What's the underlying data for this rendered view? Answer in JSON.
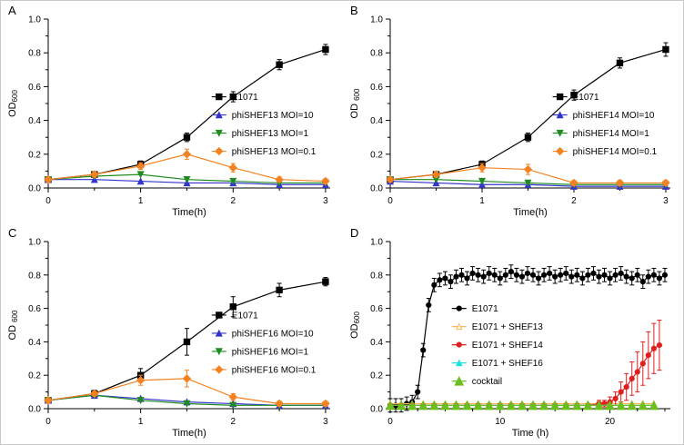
{
  "figure": {
    "background": "#ffffff",
    "border_color": "#c9c9c9"
  },
  "chart_data": [
    {
      "panel_label": "A",
      "type": "line",
      "title": "",
      "xlabel": "Time(h)",
      "ylabel": "OD",
      "ylabel_sub": "600",
      "ylabel_space": false,
      "xlim": [
        0,
        3.05
      ],
      "ylim": [
        0,
        1.0
      ],
      "xticks": [
        0,
        1,
        2,
        3
      ],
      "yticks": [
        0,
        0.2,
        0.4,
        0.6,
        0.8,
        1.0
      ],
      "xminor": 0.5,
      "yminor": 0.1,
      "legend": {
        "fx": 0.58,
        "fy": 0.46,
        "dy": 20
      },
      "x": [
        0,
        0.5,
        1,
        1.5,
        2,
        2.5,
        3
      ],
      "series": [
        {
          "name": "E1071",
          "color": "#000000",
          "marker": "square",
          "msize": 3.2,
          "values": [
            0.05,
            0.08,
            0.14,
            0.3,
            0.54,
            0.73,
            0.82
          ],
          "errors": [
            0.015,
            0.015,
            0.02,
            0.025,
            0.03,
            0.03,
            0.03
          ]
        },
        {
          "name": "phiSHEF13 MOI=10",
          "color": "#3333cc",
          "marker": "triangle",
          "msize": 3.2,
          "values": [
            0.05,
            0.05,
            0.04,
            0.03,
            0.03,
            0.02,
            0.02
          ]
        },
        {
          "name": "phiSHEF13 MOI=1",
          "color": "#1f8c1f",
          "marker": "triangle-down",
          "msize": 3.2,
          "values": [
            0.05,
            0.07,
            0.08,
            0.05,
            0.04,
            0.03,
            0.03
          ]
        },
        {
          "name": "phiSHEF13 MOI=0.1",
          "color": "#f58220",
          "marker": "diamond",
          "msize": 3,
          "values": [
            0.05,
            0.08,
            0.13,
            0.2,
            0.12,
            0.05,
            0.04
          ],
          "errors": [
            0.015,
            0.015,
            0.02,
            0.03,
            0.025,
            0.015,
            0.015
          ]
        }
      ]
    },
    {
      "panel_label": "B",
      "type": "line",
      "title": "",
      "xlabel": "Time(h)",
      "ylabel": "OD",
      "ylabel_sub": "600",
      "ylabel_space": true,
      "xlim": [
        0,
        3.05
      ],
      "ylim": [
        0,
        1.0
      ],
      "xticks": [
        0,
        1,
        2,
        3
      ],
      "yticks": [
        0,
        0.2,
        0.4,
        0.6,
        0.8,
        1.0
      ],
      "xminor": 0.5,
      "yminor": 0.1,
      "legend": {
        "fx": 0.58,
        "fy": 0.46,
        "dy": 20
      },
      "x": [
        0,
        0.5,
        1,
        1.5,
        2,
        2.5,
        3
      ],
      "series": [
        {
          "name": "E1071",
          "color": "#000000",
          "marker": "square",
          "msize": 3.2,
          "values": [
            0.05,
            0.08,
            0.14,
            0.3,
            0.55,
            0.74,
            0.82
          ],
          "errors": [
            0.015,
            0.015,
            0.02,
            0.025,
            0.03,
            0.03,
            0.04
          ]
        },
        {
          "name": "phiSHEF14 MOI=10",
          "color": "#3333cc",
          "marker": "triangle",
          "msize": 3.2,
          "values": [
            0.04,
            0.03,
            0.02,
            0.02,
            0.01,
            0.01,
            0.01
          ]
        },
        {
          "name": "phiSHEF14 MOI=1",
          "color": "#1f8c1f",
          "marker": "triangle-down",
          "msize": 3.2,
          "values": [
            0.05,
            0.05,
            0.04,
            0.03,
            0.02,
            0.02,
            0.02
          ]
        },
        {
          "name": "phiSHEF14 MOI=0.1",
          "color": "#f58220",
          "marker": "diamond",
          "msize": 3,
          "values": [
            0.05,
            0.08,
            0.12,
            0.11,
            0.03,
            0.03,
            0.03
          ],
          "errors": [
            0.015,
            0.015,
            0.025,
            0.03,
            0.015,
            0.015,
            0.015
          ]
        }
      ]
    },
    {
      "panel_label": "C",
      "type": "line",
      "title": "",
      "xlabel": "Time(h)",
      "ylabel": "OD",
      "ylabel_sub": "600",
      "ylabel_space": true,
      "xlim": [
        0,
        3.05
      ],
      "ylim": [
        0,
        1.0
      ],
      "xticks": [
        0,
        1,
        2,
        3
      ],
      "yticks": [
        0,
        0.2,
        0.4,
        0.6,
        0.8,
        1.0
      ],
      "xminor": 0.5,
      "yminor": 0.1,
      "legend": {
        "fx": 0.58,
        "fy": 0.44,
        "dy": 20
      },
      "x": [
        0,
        0.5,
        1,
        1.5,
        2,
        2.5,
        3
      ],
      "series": [
        {
          "name": "E1071",
          "color": "#000000",
          "marker": "square",
          "msize": 3.2,
          "values": [
            0.05,
            0.09,
            0.2,
            0.4,
            0.61,
            0.71,
            0.76
          ],
          "errors": [
            0.015,
            0.02,
            0.04,
            0.08,
            0.06,
            0.04,
            0.025
          ]
        },
        {
          "name": "phiSHEF16 MOI=10",
          "color": "#3333cc",
          "marker": "triangle",
          "msize": 3.2,
          "values": [
            0.05,
            0.08,
            0.06,
            0.04,
            0.03,
            0.02,
            0.02
          ]
        },
        {
          "name": "phiSHEF16 MOI=1",
          "color": "#1f8c1f",
          "marker": "triangle-down",
          "msize": 3.2,
          "values": [
            0.05,
            0.08,
            0.05,
            0.03,
            0.02,
            0.02,
            0.02
          ]
        },
        {
          "name": "phiSHEF16 MOI=0.1",
          "color": "#f58220",
          "marker": "diamond",
          "msize": 3,
          "values": [
            0.05,
            0.09,
            0.17,
            0.18,
            0.07,
            0.03,
            0.03
          ],
          "errors": [
            0.015,
            0.015,
            0.03,
            0.05,
            0.02,
            0.015,
            0.015
          ]
        }
      ]
    },
    {
      "panel_label": "D",
      "type": "line",
      "title": "",
      "xlabel": "Time (h)",
      "ylabel": "OD",
      "ylabel_sub": "600",
      "ylabel_space": false,
      "xlim": [
        0,
        25.5
      ],
      "ylim": [
        0,
        1.0
      ],
      "xticks": [
        0,
        10,
        20
      ],
      "yticks": [
        0,
        0.2,
        0.4,
        0.6,
        0.8,
        1.0
      ],
      "xminor": 2.5,
      "yminor": 0.1,
      "legend": {
        "fx": 0.22,
        "fy": 0.4,
        "dy": 20
      },
      "series": [
        {
          "name": "E1071",
          "color": "#000000",
          "marker": "circle",
          "msize": 2.6,
          "x": [
            0,
            0.5,
            1,
            1.5,
            2,
            2.5,
            3,
            3.5,
            4,
            4.5,
            5,
            5.5,
            6,
            6.5,
            7,
            7.5,
            8,
            8.5,
            9,
            9.5,
            10,
            10.5,
            11,
            11.5,
            12,
            12.5,
            13,
            13.5,
            14,
            14.5,
            15,
            15.5,
            16,
            16.5,
            17,
            17.5,
            18,
            18.5,
            19,
            19.5,
            20,
            20.5,
            21,
            21.5,
            22,
            22.5,
            23,
            23.5,
            24,
            24.5,
            25
          ],
          "values": [
            0.02,
            0.02,
            0.02,
            0.03,
            0.04,
            0.1,
            0.35,
            0.62,
            0.74,
            0.77,
            0.78,
            0.76,
            0.79,
            0.8,
            0.78,
            0.81,
            0.8,
            0.79,
            0.81,
            0.8,
            0.78,
            0.8,
            0.82,
            0.8,
            0.79,
            0.81,
            0.8,
            0.78,
            0.8,
            0.81,
            0.79,
            0.8,
            0.81,
            0.79,
            0.8,
            0.78,
            0.8,
            0.81,
            0.79,
            0.8,
            0.78,
            0.8,
            0.81,
            0.79,
            0.78,
            0.8,
            0.76,
            0.79,
            0.8,
            0.78,
            0.8
          ],
          "errors": 0.04
        },
        {
          "name": "E1071 + SHEF13",
          "color": "#ffb558",
          "marker": "triangle",
          "open": true,
          "msize": 3,
          "x": [
            0,
            1,
            2,
            3,
            4,
            5,
            6,
            7,
            8,
            9,
            10,
            11,
            12,
            13,
            14,
            15,
            16,
            17,
            18,
            19,
            20,
            21,
            22,
            23,
            24
          ],
          "values": [
            0.03,
            0.03,
            0.03,
            0.03,
            0.03,
            0.03,
            0.03,
            0.03,
            0.03,
            0.03,
            0.03,
            0.03,
            0.03,
            0.03,
            0.03,
            0.03,
            0.03,
            0.03,
            0.03,
            0.03,
            0.03,
            0.03,
            0.03,
            0.03,
            0.03
          ]
        },
        {
          "name": "E1071 + SHEF14",
          "color": "#e01f1f",
          "marker": "circle",
          "msize": 2.6,
          "x": [
            0,
            1,
            2,
            3,
            4,
            5,
            6,
            7,
            8,
            9,
            10,
            11,
            12,
            13,
            14,
            15,
            16,
            17,
            18,
            19,
            19.5,
            20,
            20.5,
            21,
            21.5,
            22,
            22.5,
            23,
            23.5,
            24,
            24.5
          ],
          "values": [
            0.02,
            0.02,
            0.02,
            0.02,
            0.02,
            0.02,
            0.02,
            0.02,
            0.02,
            0.02,
            0.02,
            0.02,
            0.02,
            0.02,
            0.02,
            0.02,
            0.02,
            0.02,
            0.02,
            0.03,
            0.03,
            0.04,
            0.06,
            0.1,
            0.13,
            0.18,
            0.22,
            0.27,
            0.32,
            0.36,
            0.38
          ],
          "errors": [
            0.01,
            0.01,
            0.01,
            0.01,
            0.01,
            0.01,
            0.01,
            0.01,
            0.01,
            0.01,
            0.01,
            0.01,
            0.01,
            0.01,
            0.01,
            0.01,
            0.01,
            0.01,
            0.01,
            0.02,
            0.02,
            0.03,
            0.04,
            0.06,
            0.08,
            0.1,
            0.12,
            0.13,
            0.14,
            0.15,
            0.15
          ]
        },
        {
          "name": "E1071 + SHEF16",
          "color": "#19e0e0",
          "marker": "triangle",
          "msize": 3,
          "x": [
            0,
            1,
            2,
            3,
            4,
            5,
            6,
            7,
            8,
            9,
            10,
            11,
            12,
            13,
            14,
            15,
            16,
            17,
            18,
            19,
            20,
            21,
            22,
            23,
            24
          ],
          "values": [
            0.02,
            0.02,
            0.02,
            0.02,
            0.02,
            0.02,
            0.02,
            0.02,
            0.02,
            0.02,
            0.02,
            0.02,
            0.02,
            0.02,
            0.02,
            0.02,
            0.02,
            0.02,
            0.02,
            0.02,
            0.02,
            0.02,
            0.02,
            0.02,
            0.02
          ]
        },
        {
          "name": "cocktail",
          "color": "#6abf1e",
          "marker": "triangle",
          "msize": 4.5,
          "x": [
            0,
            1,
            2,
            3,
            4,
            5,
            6,
            7,
            8,
            9,
            10,
            11,
            12,
            13,
            14,
            15,
            16,
            17,
            18,
            19,
            20,
            21,
            22,
            23,
            24
          ],
          "values": [
            0.02,
            0.02,
            0.02,
            0.02,
            0.02,
            0.02,
            0.02,
            0.02,
            0.02,
            0.02,
            0.02,
            0.02,
            0.02,
            0.02,
            0.02,
            0.02,
            0.02,
            0.02,
            0.02,
            0.02,
            0.02,
            0.02,
            0.02,
            0.02,
            0.02
          ]
        }
      ]
    }
  ]
}
